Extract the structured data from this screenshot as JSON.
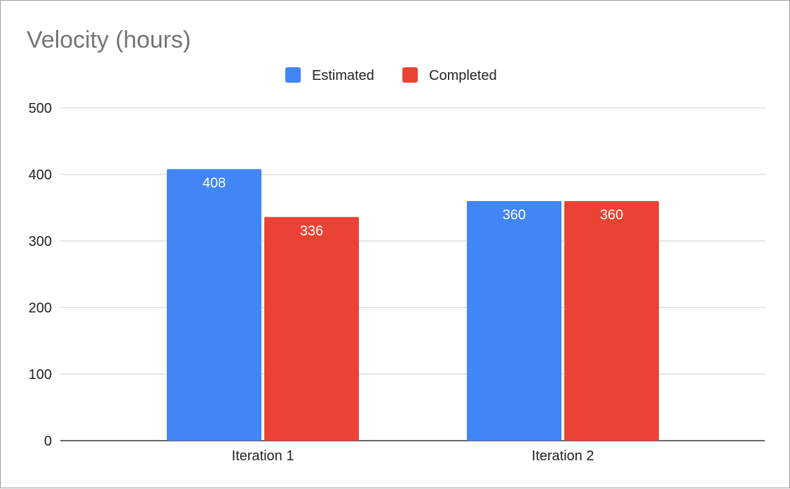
{
  "chart_data": {
    "type": "bar",
    "title": "Velocity (hours)",
    "categories": [
      "Iteration 1",
      "Iteration 2"
    ],
    "series": [
      {
        "name": "Estimated",
        "values": [
          408,
          360
        ],
        "color": "#4285F4"
      },
      {
        "name": "Completed",
        "values": [
          336,
          360
        ],
        "color": "#EA4335"
      }
    ],
    "ylim": [
      0,
      500
    ],
    "yticks": [
      0,
      100,
      200,
      300,
      400,
      500
    ],
    "grid": true,
    "legend": "top-center",
    "data_labels": true,
    "title_color": "#757575"
  }
}
